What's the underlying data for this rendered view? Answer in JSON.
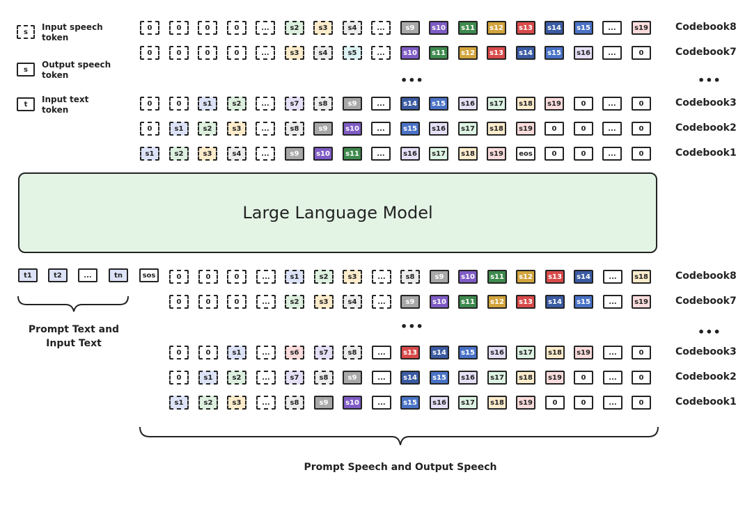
{
  "legend": [
    {
      "glyph": "s",
      "style": "dashed",
      "label": "Input speech token"
    },
    {
      "glyph": "s",
      "style": "solid",
      "label": "Output speech token"
    },
    {
      "glyph": "t",
      "style": "solid",
      "label": "Input text token"
    }
  ],
  "colors": {
    "s1": "#dde3f7",
    "s2": "#ddf0df",
    "s3": "#fdeccc",
    "s4": "#ececec",
    "s5": "#ddf3f3",
    "s6": "#fbdcdc",
    "s7": "#e6e0f7",
    "s8": "#ececec",
    "s9": "#a8a8a8",
    "s10": "#7f5cc5",
    "s11": "#3f8a4e",
    "s12": "#d2a43c",
    "s13": "#d94a4a",
    "s14": "#3b5ba3",
    "s15": "#4a73c7",
    "s16": "#e6e0f7",
    "s17": "#ddf3e3",
    "s18": "#fdeccc",
    "s19": "#fbdcdc",
    "sos": "#ffffff",
    "eos": "#ffffff",
    "0": "#ffffff",
    "...": "#ffffff",
    "t1": "#dde3f7",
    "t2": "#dde3f7",
    "tn": "#dde3f7"
  },
  "top_rows": [
    {
      "label": "Codebook8",
      "tokens": [
        [
          "0",
          "d"
        ],
        [
          "0",
          "d"
        ],
        [
          "0",
          "d"
        ],
        [
          "0",
          "d"
        ],
        [
          "...",
          "d"
        ],
        [
          "s2",
          "d"
        ],
        [
          "s3",
          "d"
        ],
        [
          "s4",
          "d"
        ],
        [
          "...",
          "d"
        ],
        [
          "s9",
          "s"
        ],
        [
          "s10",
          "s"
        ],
        [
          "s11",
          "s"
        ],
        [
          "s12",
          "s"
        ],
        [
          "s13",
          "s"
        ],
        [
          "s14",
          "s"
        ],
        [
          "s15",
          "s"
        ],
        [
          "...",
          "s"
        ],
        [
          "s19",
          "s"
        ]
      ]
    },
    {
      "label": "Codebook7",
      "tokens": [
        [
          "0",
          "d"
        ],
        [
          "0",
          "d"
        ],
        [
          "0",
          "d"
        ],
        [
          "0",
          "d"
        ],
        [
          "...",
          "d"
        ],
        [
          "s3",
          "d"
        ],
        [
          "s4",
          "d"
        ],
        [
          "s5",
          "d"
        ],
        [
          "...",
          "d"
        ],
        [
          "s10",
          "s"
        ],
        [
          "s11",
          "s"
        ],
        [
          "s12",
          "s"
        ],
        [
          "s13",
          "s"
        ],
        [
          "s14",
          "s"
        ],
        [
          "s15",
          "s"
        ],
        [
          "s16",
          "s"
        ],
        [
          "...",
          "s"
        ],
        [
          "0",
          "s"
        ]
      ]
    },
    {
      "label": "Codebook3",
      "tokens": [
        [
          "0",
          "d"
        ],
        [
          "0",
          "d"
        ],
        [
          "s1",
          "d"
        ],
        [
          "s2",
          "d"
        ],
        [
          "...",
          "d"
        ],
        [
          "s7",
          "d"
        ],
        [
          "s8",
          "d"
        ],
        [
          "s9",
          "s"
        ],
        [
          "...",
          "s"
        ],
        [
          "s14",
          "s"
        ],
        [
          "s15",
          "s"
        ],
        [
          "s16",
          "s"
        ],
        [
          "s17",
          "s"
        ],
        [
          "s18",
          "s"
        ],
        [
          "s19",
          "s"
        ],
        [
          "0",
          "s"
        ],
        [
          "...",
          "s"
        ],
        [
          "0",
          "s"
        ]
      ]
    },
    {
      "label": "Codebook2",
      "tokens": [
        [
          "0",
          "d"
        ],
        [
          "s1",
          "d"
        ],
        [
          "s2",
          "d"
        ],
        [
          "s3",
          "d"
        ],
        [
          "...",
          "d"
        ],
        [
          "s8",
          "d"
        ],
        [
          "s9",
          "s"
        ],
        [
          "s10",
          "s"
        ],
        [
          "...",
          "s"
        ],
        [
          "s15",
          "s"
        ],
        [
          "s16",
          "s"
        ],
        [
          "s17",
          "s"
        ],
        [
          "s18",
          "s"
        ],
        [
          "s19",
          "s"
        ],
        [
          "0",
          "s"
        ],
        [
          "0",
          "s"
        ],
        [
          "...",
          "s"
        ],
        [
          "0",
          "s"
        ]
      ]
    },
    {
      "label": "Codebook1",
      "tokens": [
        [
          "s1",
          "d"
        ],
        [
          "s2",
          "d"
        ],
        [
          "s3",
          "d"
        ],
        [
          "s4",
          "d"
        ],
        [
          "...",
          "d"
        ],
        [
          "s9",
          "s"
        ],
        [
          "s10",
          "s"
        ],
        [
          "s11",
          "s"
        ],
        [
          "...",
          "s"
        ],
        [
          "s16",
          "s"
        ],
        [
          "s17",
          "s"
        ],
        [
          "s18",
          "s"
        ],
        [
          "s19",
          "s"
        ],
        [
          "eos",
          "s"
        ],
        [
          "0",
          "s"
        ],
        [
          "0",
          "s"
        ],
        [
          "...",
          "s"
        ],
        [
          "0",
          "s"
        ]
      ]
    }
  ],
  "ellipsis": "•••",
  "llm_label": "Large Language Model",
  "text_tokens": [
    "t1",
    "t2",
    "...",
    "tn"
  ],
  "sos_token": "sos",
  "bottom_rows": [
    {
      "label": "Codebook8",
      "tokens": [
        [
          "0",
          "d"
        ],
        [
          "0",
          "d"
        ],
        [
          "0",
          "d"
        ],
        [
          "...",
          "d"
        ],
        [
          "s1",
          "d"
        ],
        [
          "s2",
          "d"
        ],
        [
          "s3",
          "d"
        ],
        [
          "...",
          "d"
        ],
        [
          "s8",
          "d"
        ],
        [
          "s9",
          "s"
        ],
        [
          "s10",
          "s"
        ],
        [
          "s11",
          "s"
        ],
        [
          "s12",
          "s"
        ],
        [
          "s13",
          "s"
        ],
        [
          "s14",
          "s"
        ],
        [
          "...",
          "s"
        ],
        [
          "s18",
          "s"
        ]
      ]
    },
    {
      "label": "Codebook7",
      "tokens": [
        [
          "0",
          "d"
        ],
        [
          "0",
          "d"
        ],
        [
          "0",
          "d"
        ],
        [
          "...",
          "d"
        ],
        [
          "s2",
          "d"
        ],
        [
          "s3",
          "d"
        ],
        [
          "s4",
          "d"
        ],
        [
          "...",
          "d"
        ],
        [
          "s9",
          "s"
        ],
        [
          "s10",
          "s"
        ],
        [
          "s11",
          "s"
        ],
        [
          "s12",
          "s"
        ],
        [
          "s13",
          "s"
        ],
        [
          "s14",
          "s"
        ],
        [
          "s15",
          "s"
        ],
        [
          "...",
          "s"
        ],
        [
          "s19",
          "s"
        ]
      ]
    },
    {
      "label": "Codebook3",
      "tokens": [
        [
          "0",
          "d"
        ],
        [
          "0",
          "d"
        ],
        [
          "s1",
          "d"
        ],
        [
          "...",
          "d"
        ],
        [
          "s6",
          "d"
        ],
        [
          "s7",
          "d"
        ],
        [
          "s8",
          "d"
        ],
        [
          "...",
          "s"
        ],
        [
          "s13",
          "s"
        ],
        [
          "s14",
          "s"
        ],
        [
          "s15",
          "s"
        ],
        [
          "s16",
          "s"
        ],
        [
          "s17",
          "s"
        ],
        [
          "s18",
          "s"
        ],
        [
          "s19",
          "s"
        ],
        [
          "...",
          "s"
        ],
        [
          "0",
          "s"
        ]
      ]
    },
    {
      "label": "Codebook2",
      "tokens": [
        [
          "0",
          "d"
        ],
        [
          "s1",
          "d"
        ],
        [
          "s2",
          "d"
        ],
        [
          "...",
          "d"
        ],
        [
          "s7",
          "d"
        ],
        [
          "s8",
          "d"
        ],
        [
          "s9",
          "s"
        ],
        [
          "...",
          "s"
        ],
        [
          "s14",
          "s"
        ],
        [
          "s15",
          "s"
        ],
        [
          "s16",
          "s"
        ],
        [
          "s17",
          "s"
        ],
        [
          "s18",
          "s"
        ],
        [
          "s19",
          "s"
        ],
        [
          "0",
          "s"
        ],
        [
          "...",
          "s"
        ],
        [
          "0",
          "s"
        ]
      ]
    },
    {
      "label": "Codebook1",
      "tokens": [
        [
          "s1",
          "d"
        ],
        [
          "s2",
          "d"
        ],
        [
          "s3",
          "d"
        ],
        [
          "...",
          "d"
        ],
        [
          "s8",
          "d"
        ],
        [
          "s9",
          "s"
        ],
        [
          "s10",
          "s"
        ],
        [
          "...",
          "s"
        ],
        [
          "s15",
          "s"
        ],
        [
          "s16",
          "s"
        ],
        [
          "s17",
          "s"
        ],
        [
          "s18",
          "s"
        ],
        [
          "s19",
          "s"
        ],
        [
          "0",
          "s"
        ],
        [
          "0",
          "s"
        ],
        [
          "...",
          "s"
        ],
        [
          "0",
          "s"
        ]
      ]
    }
  ],
  "brace_left_label": "Prompt Text and Input Text",
  "brace_right_label": "Prompt Speech and Output Speech"
}
